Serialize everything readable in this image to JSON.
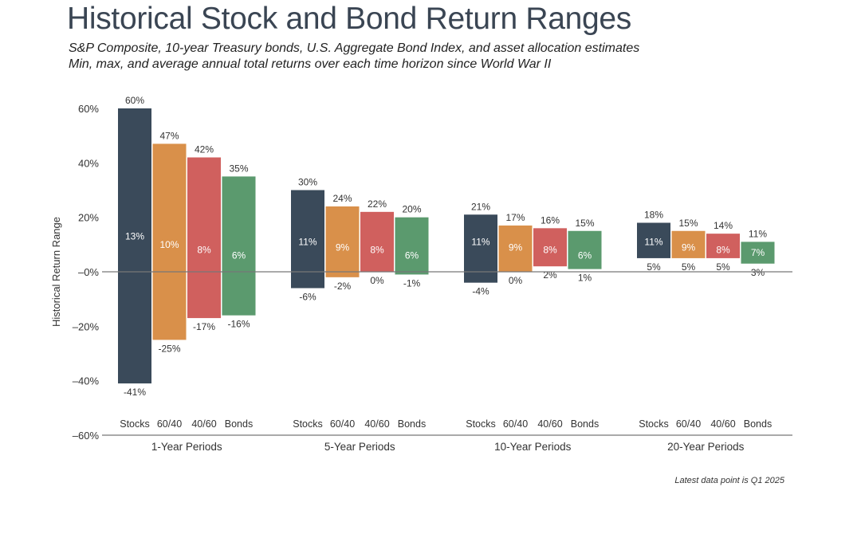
{
  "chart_data": {
    "type": "bar",
    "subtype": "floating-range-bar",
    "title": "Historical Stock and Bond Return Ranges",
    "subtitle": [
      "S&P Composite, 10-year Treasury bonds, U.S. Aggregate Bond Index, and asset allocation estimates",
      "Min, max, and average annual total returns over each time horizon since World War II"
    ],
    "ylabel": "Historical Return Range",
    "ylim": [
      -60,
      60
    ],
    "y_ticks": [
      60,
      40,
      20,
      0,
      -20,
      -40,
      -60
    ],
    "y_tick_labels": [
      "60%",
      "40%",
      "20%",
      "–0%",
      "–20%",
      "–40%",
      "–60%"
    ],
    "grid": false,
    "zero_line": true,
    "series_colors": {
      "Stocks": "#3a4a5a",
      "60/40": "#d9904a",
      "40/60": "#d0605e",
      "Bonds": "#5b9a6e"
    },
    "groups": [
      {
        "label": "1-Year Periods",
        "bars": [
          {
            "label": "Stocks",
            "max": 60,
            "min": -41,
            "avg": 13,
            "max_label": "60%",
            "min_label": "-41%",
            "avg_label": "13%"
          },
          {
            "label": "60/40",
            "max": 47,
            "min": -25,
            "avg": 10,
            "max_label": "47%",
            "min_label": "-25%",
            "avg_label": "10%"
          },
          {
            "label": "40/60",
            "max": 42,
            "min": -17,
            "avg": 8,
            "max_label": "42%",
            "min_label": "-17%",
            "avg_label": "8%"
          },
          {
            "label": "Bonds",
            "max": 35,
            "min": -16,
            "avg": 6,
            "max_label": "35%",
            "min_label": "-16%",
            "avg_label": "6%"
          }
        ]
      },
      {
        "label": "5-Year Periods",
        "bars": [
          {
            "label": "Stocks",
            "max": 30,
            "min": -6,
            "avg": 11,
            "max_label": "30%",
            "min_label": "-6%",
            "avg_label": "11%"
          },
          {
            "label": "60/40",
            "max": 24,
            "min": -2,
            "avg": 9,
            "max_label": "24%",
            "min_label": "-2%",
            "avg_label": "9%"
          },
          {
            "label": "40/60",
            "max": 22,
            "min": 0,
            "avg": 8,
            "max_label": "22%",
            "min_label": "0%",
            "avg_label": "8%"
          },
          {
            "label": "Bonds",
            "max": 20,
            "min": -1,
            "avg": 6,
            "max_label": "20%",
            "min_label": "-1%",
            "avg_label": "6%"
          }
        ]
      },
      {
        "label": "10-Year Periods",
        "bars": [
          {
            "label": "Stocks",
            "max": 21,
            "min": -4,
            "avg": 11,
            "max_label": "21%",
            "min_label": "-4%",
            "avg_label": "11%"
          },
          {
            "label": "60/40",
            "max": 17,
            "min": 0,
            "avg": 9,
            "max_label": "17%",
            "min_label": "0%",
            "avg_label": "9%"
          },
          {
            "label": "40/60",
            "max": 16,
            "min": 2,
            "avg": 8,
            "max_label": "16%",
            "min_label": "2%",
            "avg_label": "8%"
          },
          {
            "label": "Bonds",
            "max": 15,
            "min": 1,
            "avg": 6,
            "max_label": "15%",
            "min_label": "1%",
            "avg_label": "6%"
          }
        ]
      },
      {
        "label": "20-Year Periods",
        "bars": [
          {
            "label": "Stocks",
            "max": 18,
            "min": 5,
            "avg": 11,
            "max_label": "18%",
            "min_label": "5%",
            "avg_label": "11%"
          },
          {
            "label": "60/40",
            "max": 15,
            "min": 5,
            "avg": 9,
            "max_label": "15%",
            "min_label": "5%",
            "avg_label": "9%"
          },
          {
            "label": "40/60",
            "max": 14,
            "min": 5,
            "avg": 8,
            "max_label": "14%",
            "min_label": "5%",
            "avg_label": "8%"
          },
          {
            "label": "Bonds",
            "max": 11,
            "min": 3,
            "avg": 7,
            "max_label": "11%",
            "min_label": "3%",
            "avg_label": "7%"
          }
        ]
      }
    ],
    "footnote": "Latest data point is Q1 2025"
  }
}
